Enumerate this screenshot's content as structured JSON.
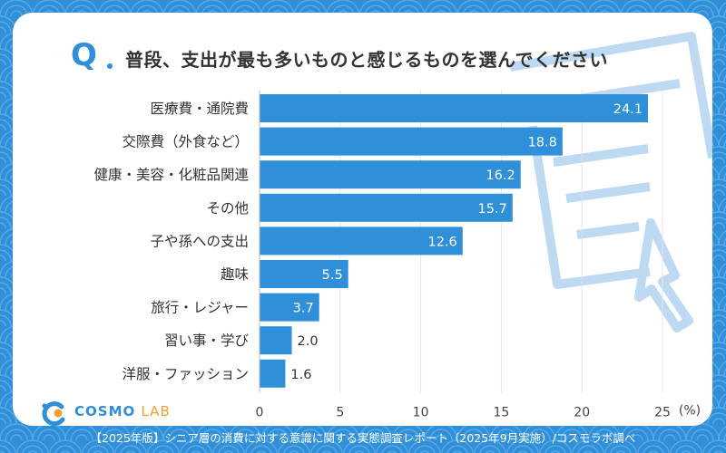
{
  "question": {
    "prefix": "Q",
    "text": "普段、支出が最も多いものと感じるものを選んでください"
  },
  "logo": {
    "brand": "COSMO",
    "suffix": "LAB"
  },
  "footer": {
    "text": "【2025年版】シニア層の消費に対する意識に関する実態調査レポート（2025年9月実施）/コスモラボ調べ"
  },
  "colors": {
    "accent": "#2f8fd8",
    "bar": "#2f8fd8",
    "logo_orange": "#f0a030"
  },
  "chart_data": {
    "type": "bar",
    "orientation": "horizontal",
    "title": "",
    "xlabel": "",
    "ylabel": "",
    "unit_label": "(%)",
    "categories": [
      "医療費・通院費",
      "交際費（外食など）",
      "健康・美容・化粧品関連",
      "その他",
      "子や孫への支出",
      "趣味",
      "旅行・レジャー",
      "習い事・学び",
      "洋服・ファッション"
    ],
    "values": [
      24.1,
      18.8,
      16.2,
      15.7,
      12.6,
      5.5,
      3.7,
      2.0,
      1.6
    ],
    "value_labels": [
      "24.1",
      "18.8",
      "16.2",
      "15.7",
      "12.6",
      "5.5",
      "3.7",
      "2.0",
      "1.6"
    ],
    "xlim": [
      0,
      25
    ],
    "xticks": [
      0,
      5,
      10,
      15,
      20,
      25
    ],
    "grid": true
  }
}
